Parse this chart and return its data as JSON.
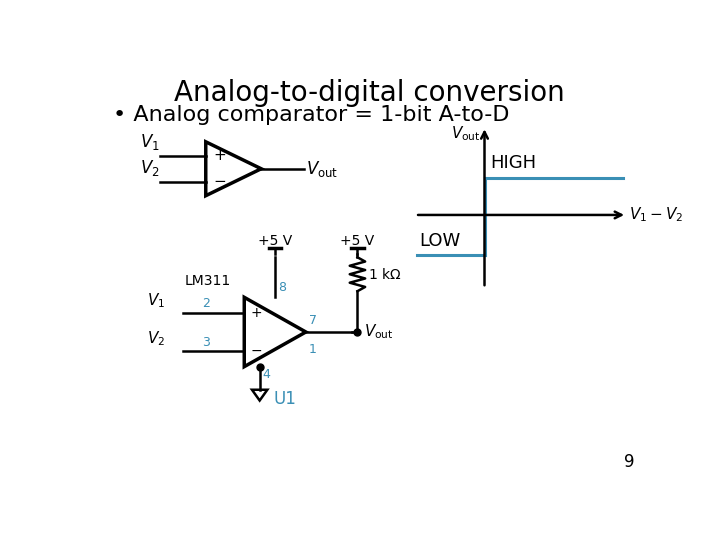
{
  "title": "Analog-to-digital conversion",
  "bullet": "• Analog comparator = 1-bit A-to-D",
  "bg_color": "#ffffff",
  "black": "#000000",
  "blue": "#3a8fb5",
  "page_num": "9",
  "title_fontsize": 20,
  "bullet_fontsize": 16
}
